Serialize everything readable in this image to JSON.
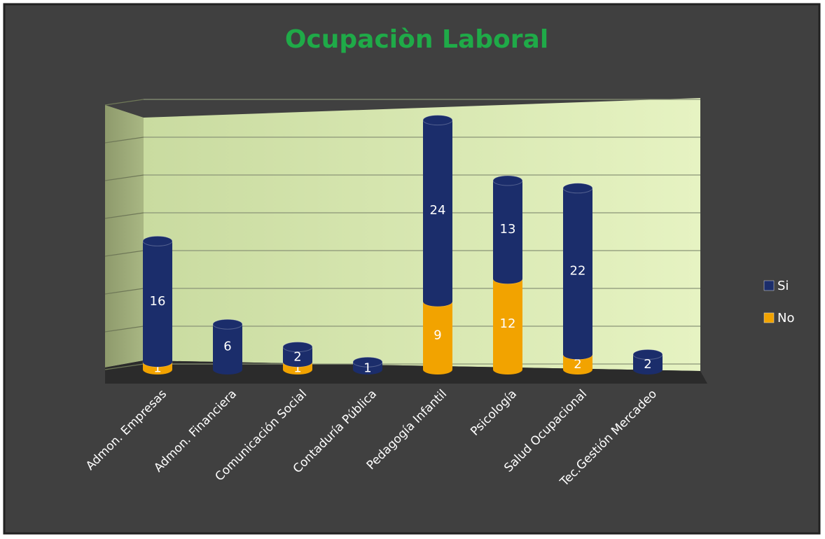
{
  "chart_data": {
    "type": "bar",
    "stacked": true,
    "title": "Ocupaciòn Laboral",
    "categories": [
      "Admon. Empresas",
      "Admon. Financiera",
      "Comunicación Social",
      "Contaduría Pública",
      "Pedagogía Infantil",
      "Psicología",
      "Salud Ocupacional",
      "Tec.Gestión Mercadeo"
    ],
    "series": [
      {
        "name": "No",
        "color": "#f2a300",
        "values": [
          1,
          null,
          1,
          null,
          9,
          12,
          2,
          null
        ]
      },
      {
        "name": "Si",
        "color": "#1b2d6b",
        "values": [
          16,
          6,
          2,
          1,
          24,
          13,
          22,
          2
        ]
      }
    ],
    "ylim": [
      0,
      35
    ],
    "yticks": [
      0,
      5,
      10,
      15,
      20,
      25,
      30,
      35
    ],
    "grid": true,
    "legend": "right"
  }
}
